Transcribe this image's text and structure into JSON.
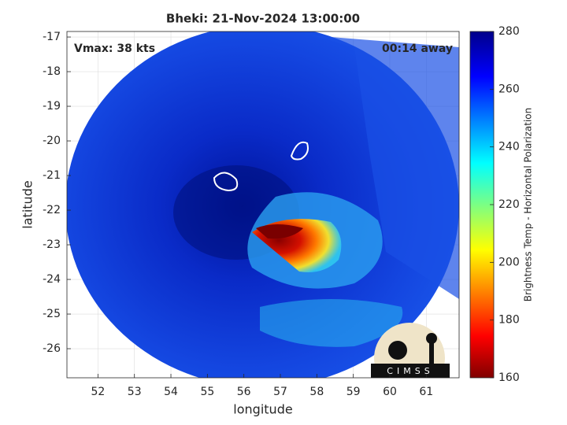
{
  "chart_data": {
    "type": "image",
    "title": "Bheki: 21-Nov-2024 13:00:00",
    "annotations": [
      "Vmax: 38 kts",
      "00:14 away"
    ],
    "x_label": "longitude",
    "y_label": "latitude",
    "xlim": [
      51.15,
      61.9
    ],
    "xticks": [
      52,
      53,
      54,
      55,
      56,
      57,
      58,
      59,
      60,
      61
    ],
    "ylim": [
      -26.84,
      -16.84
    ],
    "yticks": [
      -26,
      -25,
      -24,
      -23,
      -22,
      -21,
      -20,
      -19,
      -18,
      -17
    ],
    "grid": true,
    "colorbar": {
      "label": "Brightness Temp - Horizontal Polarization",
      "lim": [
        160,
        280
      ],
      "ticks": [
        160,
        180,
        200,
        220,
        240,
        260,
        280
      ]
    },
    "logo": "CIMSS"
  }
}
